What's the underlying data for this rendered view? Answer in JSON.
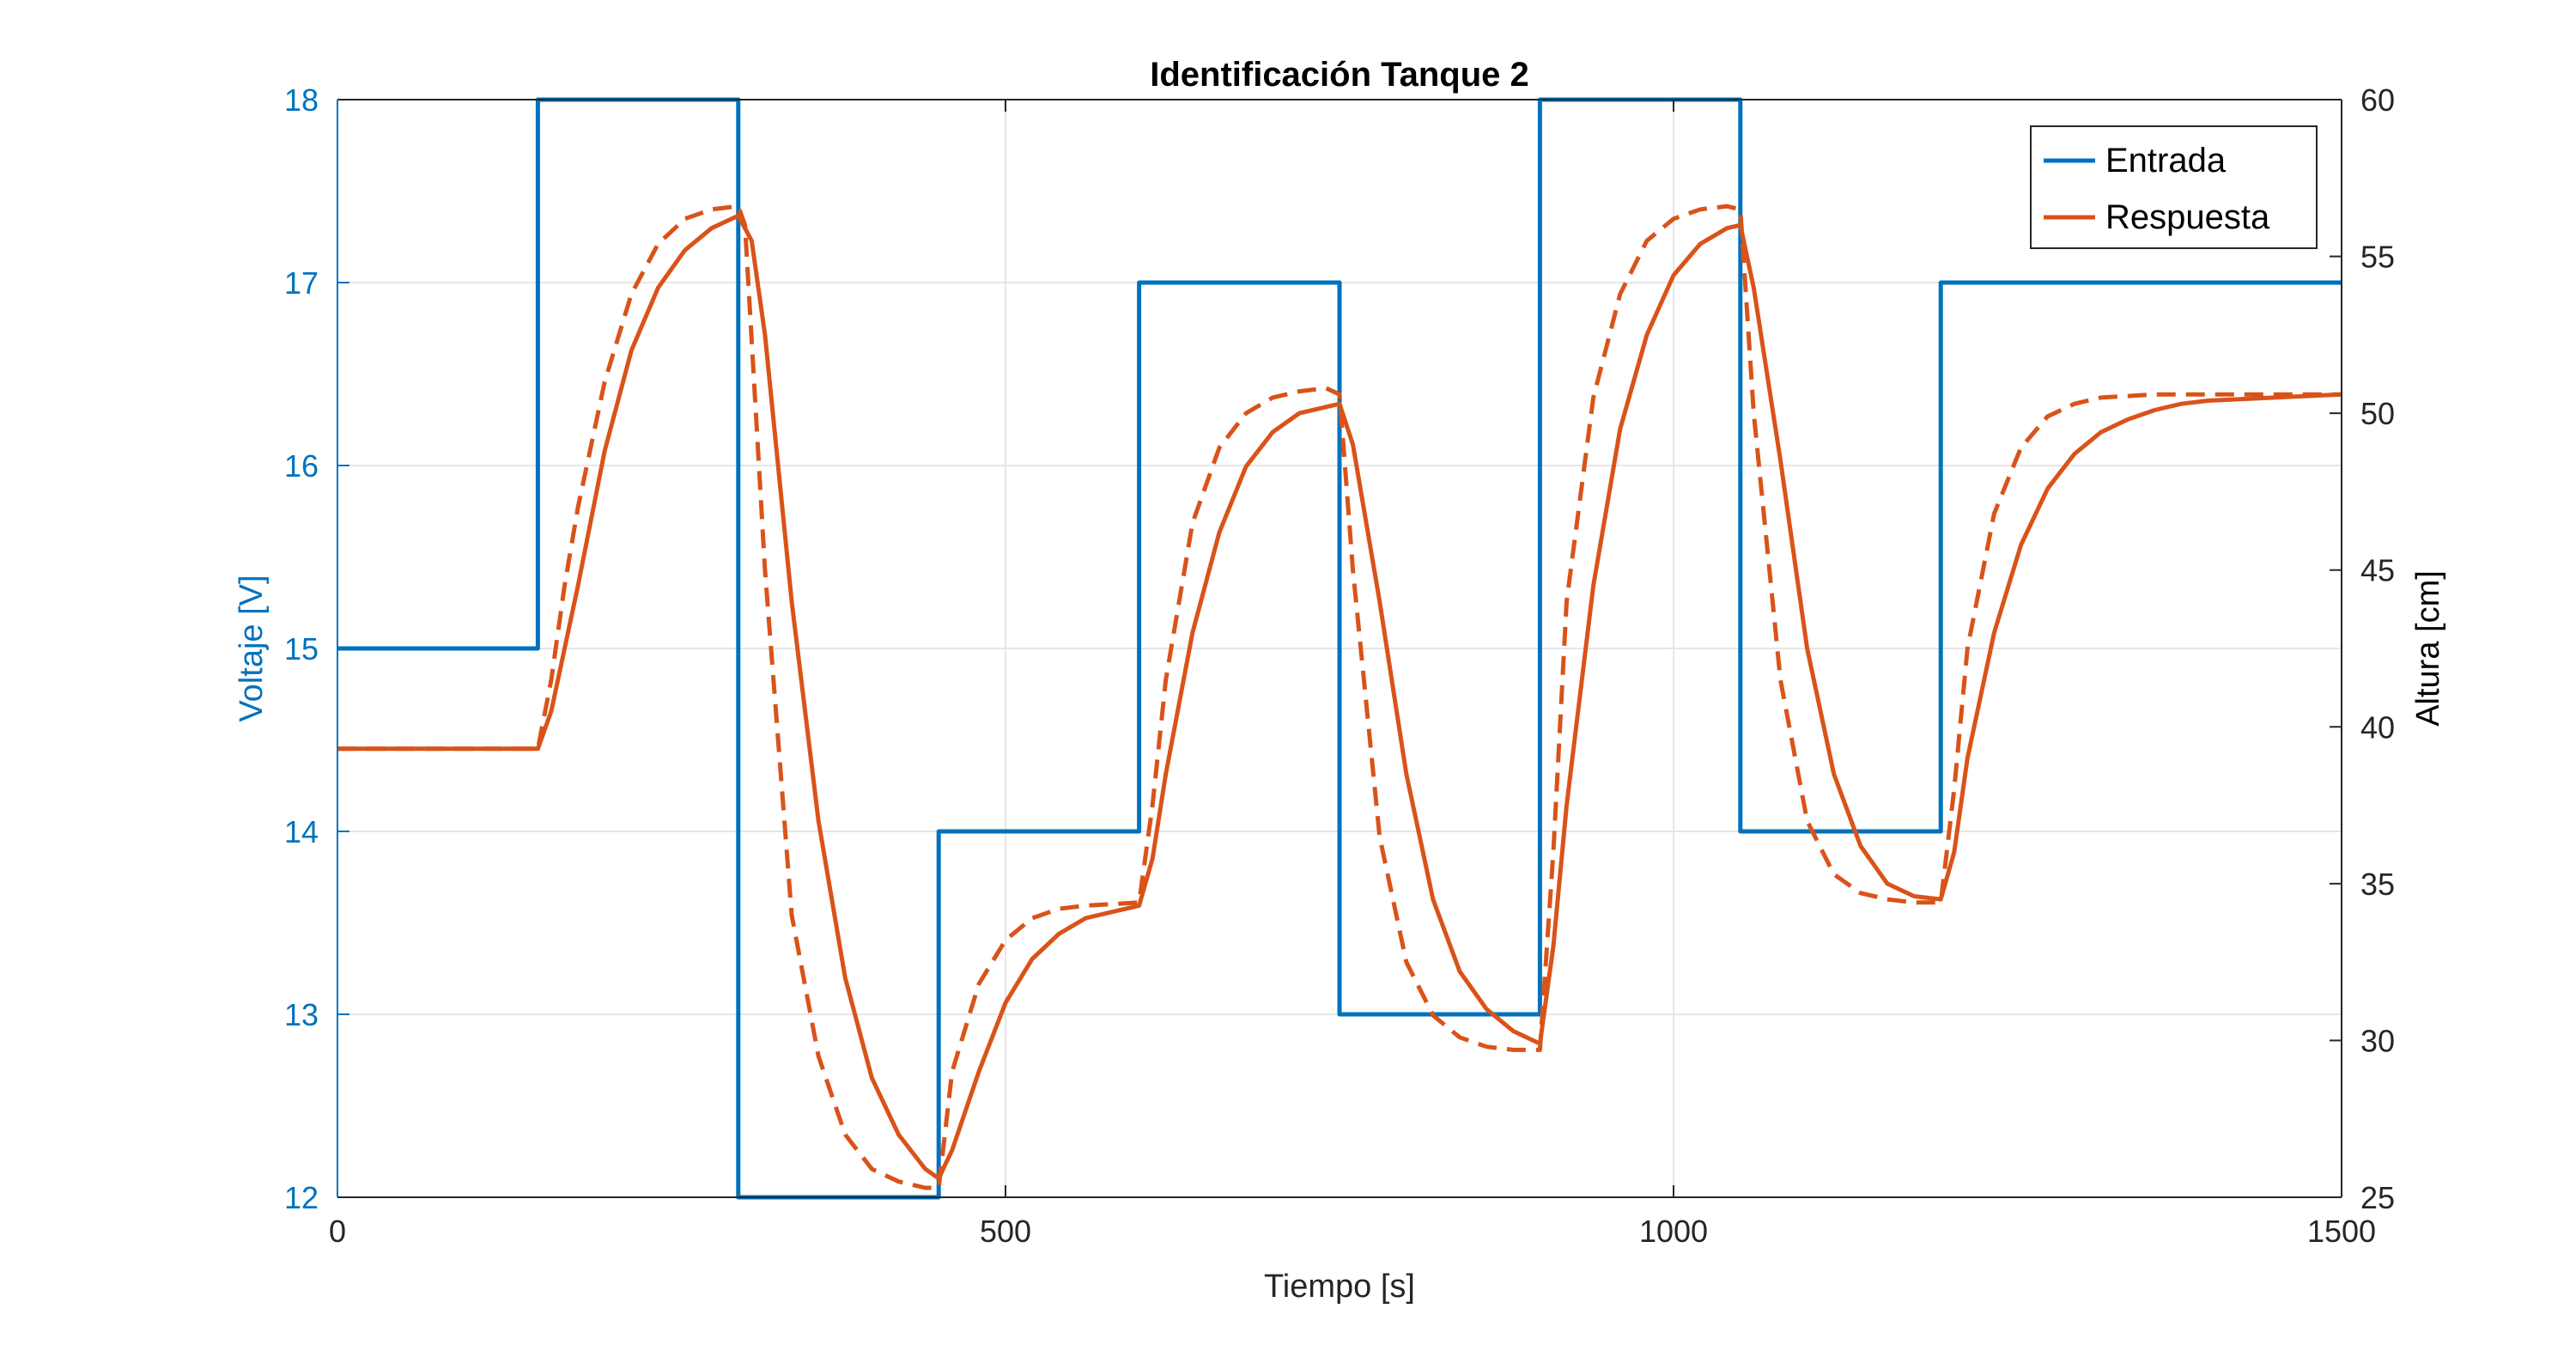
{
  "colors": {
    "left_axis": "#0072BD",
    "input": "#0072BD",
    "response": "#D95319",
    "grid": "#E6E6E6",
    "axis": "#262626"
  },
  "chart_data": {
    "type": "line",
    "title": "Identificación Tanque 2",
    "xlabel": "Tiempo [s]",
    "ylabel_left": "Voltaje [V]",
    "ylabel_right": "Altura [cm]",
    "xlim": [
      0,
      1500
    ],
    "ylim_left": [
      12,
      18
    ],
    "ylim_right": [
      25,
      60
    ],
    "xticks": [
      "0",
      "500",
      "1000",
      "1500"
    ],
    "yticks_left": [
      "12",
      "13",
      "14",
      "15",
      "16",
      "17",
      "18"
    ],
    "yticks_right": [
      "25",
      "30",
      "35",
      "40",
      "45",
      "50",
      "55",
      "60"
    ],
    "grid": true,
    "legend_position": "top-right",
    "legend": [
      "Entrada",
      "Respuesta"
    ],
    "series": [
      {
        "name": "Entrada",
        "axis": "left",
        "style": "step",
        "x": [
          0,
          150,
          150,
          300,
          300,
          450,
          450,
          600,
          600,
          750,
          750,
          900,
          900,
          1050,
          1050,
          1200,
          1200,
          1500
        ],
        "y": [
          15,
          15,
          18,
          18,
          12,
          12,
          14,
          14,
          17,
          17,
          13,
          13,
          18,
          18,
          14,
          14,
          17,
          17
        ]
      },
      {
        "name": "Respuesta",
        "axis": "right",
        "style": "solid",
        "x": [
          0,
          150,
          160,
          180,
          200,
          220,
          240,
          260,
          280,
          300,
          310,
          320,
          340,
          360,
          380,
          400,
          420,
          440,
          450,
          460,
          480,
          500,
          520,
          540,
          560,
          580,
          600,
          610,
          620,
          640,
          660,
          680,
          700,
          720,
          740,
          750,
          760,
          780,
          800,
          820,
          840,
          860,
          880,
          900,
          910,
          920,
          940,
          960,
          980,
          1000,
          1020,
          1040,
          1050,
          1060,
          1080,
          1100,
          1120,
          1140,
          1160,
          1180,
          1200,
          1210,
          1220,
          1240,
          1260,
          1280,
          1300,
          1320,
          1340,
          1360,
          1380,
          1400,
          1450,
          1500
        ],
        "y": [
          39.3,
          39.3,
          40.5,
          44.5,
          48.8,
          52.0,
          54.0,
          55.2,
          55.9,
          56.3,
          55.5,
          52.5,
          44.0,
          37.0,
          32.0,
          28.8,
          27.0,
          25.9,
          25.6,
          26.5,
          29.0,
          31.2,
          32.6,
          33.4,
          33.9,
          34.1,
          34.3,
          35.8,
          38.5,
          43.0,
          46.2,
          48.3,
          49.4,
          50.0,
          50.2,
          50.3,
          49.0,
          44.0,
          38.5,
          34.5,
          32.2,
          31.0,
          30.3,
          29.9,
          33.0,
          37.5,
          44.5,
          49.5,
          52.5,
          54.4,
          55.4,
          55.9,
          56.0,
          54.0,
          48.5,
          42.5,
          38.5,
          36.2,
          35.0,
          34.6,
          34.5,
          36.0,
          39.0,
          43.0,
          45.8,
          47.6,
          48.7,
          49.4,
          49.8,
          50.1,
          50.3,
          50.4,
          50.5,
          50.6
        ]
      },
      {
        "name": "",
        "axis": "right",
        "style": "dashed",
        "x": [
          0,
          150,
          160,
          170,
          180,
          200,
          220,
          240,
          260,
          280,
          300,
          305,
          320,
          340,
          360,
          380,
          400,
          420,
          440,
          450,
          460,
          480,
          500,
          520,
          540,
          560,
          580,
          600,
          610,
          620,
          640,
          660,
          680,
          700,
          720,
          740,
          750,
          760,
          780,
          800,
          820,
          840,
          860,
          880,
          900,
          910,
          920,
          940,
          960,
          980,
          1000,
          1020,
          1040,
          1050,
          1060,
          1080,
          1100,
          1120,
          1140,
          1160,
          1180,
          1200,
          1210,
          1220,
          1240,
          1260,
          1280,
          1300,
          1320,
          1340,
          1360,
          1380,
          1400,
          1450,
          1500
        ],
        "y": [
          39.3,
          39.3,
          41.5,
          44.5,
          47.0,
          51.0,
          53.8,
          55.4,
          56.2,
          56.5,
          56.6,
          56.0,
          45.0,
          34.0,
          29.5,
          27.0,
          25.9,
          25.5,
          25.3,
          25.3,
          29.0,
          31.8,
          33.2,
          33.9,
          34.2,
          34.3,
          34.35,
          34.4,
          37.5,
          41.5,
          46.5,
          48.9,
          50.0,
          50.5,
          50.7,
          50.8,
          50.6,
          45.0,
          36.5,
          32.5,
          30.8,
          30.1,
          29.8,
          29.7,
          29.7,
          36.0,
          44.0,
          50.5,
          53.8,
          55.5,
          56.2,
          56.5,
          56.6,
          56.5,
          50.0,
          41.5,
          37.0,
          35.3,
          34.7,
          34.5,
          34.4,
          34.4,
          38.0,
          42.5,
          46.8,
          48.9,
          49.9,
          50.3,
          50.5,
          50.55,
          50.6,
          50.6,
          50.6,
          50.6,
          50.6
        ]
      }
    ]
  }
}
